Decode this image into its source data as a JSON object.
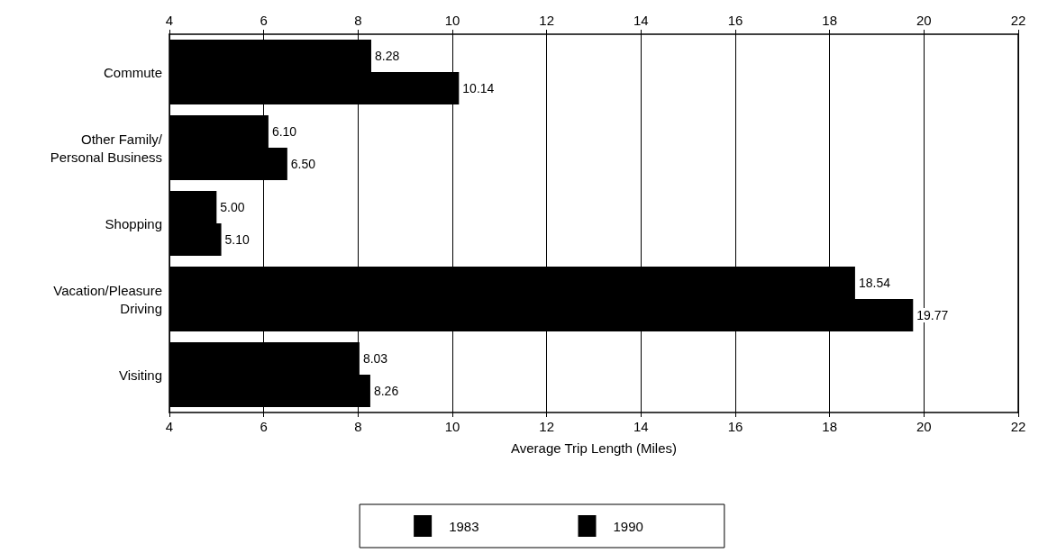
{
  "chart_data": {
    "type": "bar",
    "orientation": "horizontal",
    "categories": [
      "Commute",
      "Other Family/\nPersonal Business",
      "Shopping",
      "Vacation/Pleasure\nDriving",
      "Visiting"
    ],
    "series": [
      {
        "name": "1983",
        "color": "#000000",
        "values": [
          8.28,
          6.1,
          5.0,
          18.54,
          8.03
        ],
        "value_labels": [
          "8.28",
          "6.10",
          "5.00",
          "18.54",
          "8.03"
        ]
      },
      {
        "name": "1990",
        "color": "#000000",
        "values": [
          10.14,
          6.5,
          5.1,
          19.77,
          8.26
        ],
        "value_labels": [
          "10.14",
          "6.50",
          "5.10",
          "19.77",
          "8.26"
        ]
      }
    ],
    "xlabel": "Average Trip Length (Miles)",
    "xlim": [
      4,
      22
    ],
    "xticks": [
      4,
      6,
      8,
      10,
      12,
      14,
      16,
      18,
      20,
      22
    ],
    "x2lim": [
      4,
      22
    ],
    "x2ticks": [
      4,
      6,
      8,
      10,
      12,
      14,
      16,
      18,
      20,
      22
    ],
    "grid": "x",
    "legend": "bottom"
  }
}
